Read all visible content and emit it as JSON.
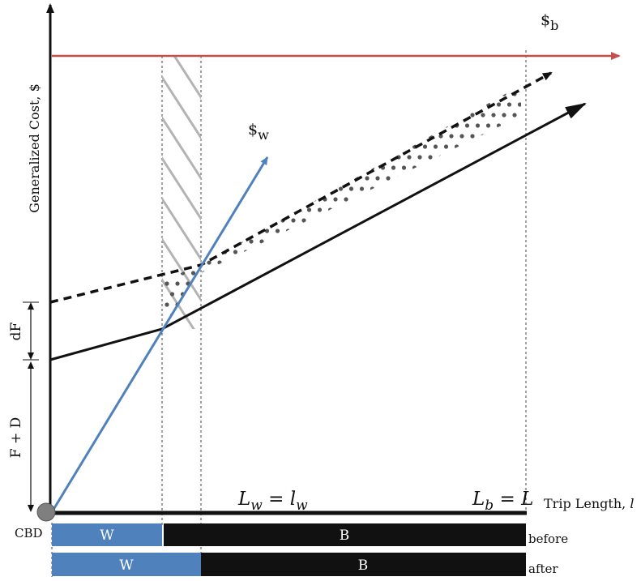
{
  "axes": {
    "y_label": "Generalized Cost, $",
    "x_label_text": "Trip Length, ",
    "x_label_var": "l",
    "origin_label": "CBD"
  },
  "curves": {
    "bus_label_main": "$",
    "bus_label_sub": "b",
    "walk_label_main": "$",
    "walk_label_sub": "w"
  },
  "dimensions": {
    "df_label": "dF",
    "fd_label": "F + D"
  },
  "markers": {
    "walk_length": {
      "L": "L",
      "L_sub": "w",
      "eq": " = ",
      "l": "l",
      "l_sub": "w"
    },
    "bus_length": {
      "L": "L",
      "L_sub": "b",
      "eq": " = ",
      "rhs": "L"
    }
  },
  "bars": {
    "before": {
      "walk": "W",
      "bus": "B",
      "label": "before"
    },
    "after": {
      "walk": "W",
      "bus": "B",
      "label": "after"
    }
  },
  "colors": {
    "red": "#c0504d",
    "blue": "#4f81bd",
    "black": "#111111",
    "hatch": "#b3b3b3",
    "dots": "#555555"
  }
}
